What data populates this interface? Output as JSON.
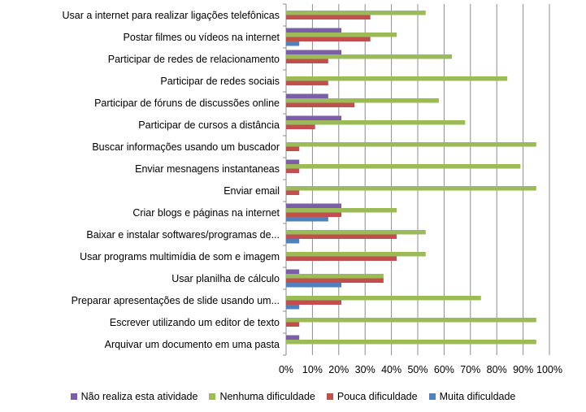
{
  "chart_data": {
    "type": "bar",
    "orientation": "horizontal",
    "categories": [
      "Usar a internet para realizar ligações telefônicas",
      "Postar filmes ou vídeos na internet",
      "Participar de redes de relacionamento",
      "Participar de redes sociais",
      "Participar de fóruns de discussões online",
      "Participar de cursos a distância",
      "Buscar informações usando um buscador",
      "Enviar mesnagens instantaneas",
      "Enviar email",
      "Criar blogs e páginas na internet",
      "Baixar e instalar softwares/programas de...",
      "Usar programs multimídia de som e imagem",
      "Usar planilha de cálculo",
      "Preparar apresentações de slide usando um...",
      "Escrever utilizando um editor de texto",
      "Arquivar um documento em uma pasta"
    ],
    "series": [
      {
        "name": "Não realiza esta atividade",
        "color": "#7b5ea7",
        "values": [
          0,
          21,
          21,
          0,
          16,
          21,
          0,
          5,
          0,
          21,
          0,
          0,
          5,
          0,
          0,
          5
        ]
      },
      {
        "name": "Nenhuma dificuldade",
        "color": "#9bbb59",
        "values": [
          53,
          42,
          63,
          84,
          58,
          68,
          95,
          89,
          95,
          42,
          53,
          53,
          37,
          74,
          95,
          95
        ]
      },
      {
        "name": "Pouca dificuldade",
        "color": "#c0504d",
        "values": [
          32,
          32,
          16,
          16,
          26,
          11,
          5,
          5,
          5,
          21,
          42,
          42,
          37,
          21,
          5,
          0
        ]
      },
      {
        "name": "Muita dificuldade",
        "color": "#4f81bd",
        "values": [
          0,
          5,
          0,
          0,
          0,
          0,
          0,
          0,
          0,
          16,
          5,
          0,
          21,
          5,
          0,
          0
        ]
      }
    ],
    "xlim": [
      0,
      100
    ],
    "xticks": [
      "0%",
      "10%",
      "20%",
      "30%",
      "40%",
      "50%",
      "60%",
      "70%",
      "80%",
      "90%",
      "100%"
    ],
    "grid": true,
    "legend_position": "bottom"
  }
}
